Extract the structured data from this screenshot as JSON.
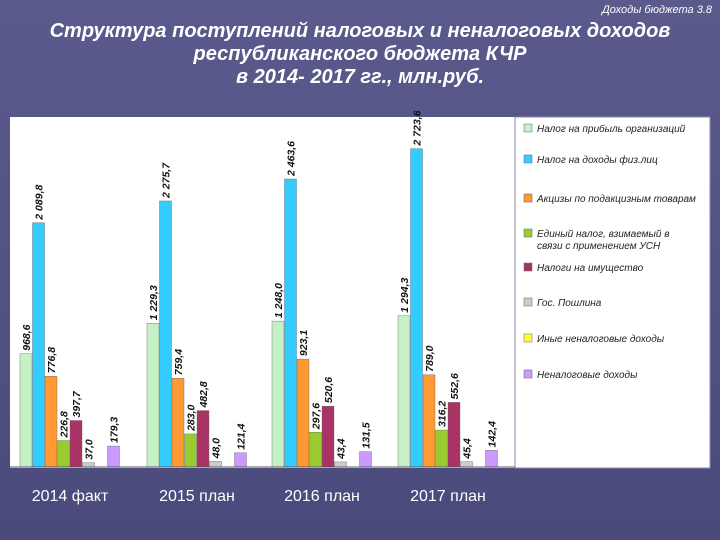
{
  "slide": {
    "header_note": "Доходы бюджета 3.8",
    "title_lines": [
      "Структура поступлений налоговых и неналоговых доходов",
      "республиканского бюджета КЧР",
      "в 2014- 2017 гг., млн.руб."
    ]
  },
  "colors": {
    "background": "#5a5a8c",
    "plot_bg": "#ffffff"
  },
  "chart_data": {
    "type": "bar",
    "title": "Структура поступлений налоговых и неналоговых доходов республиканского бюджета КЧР в 2014- 2017 гг., млн.руб.",
    "categories": [
      "2014 факт",
      "2015 план",
      "2016 план",
      "2017 план"
    ],
    "ylim": [
      0,
      2900
    ],
    "grid": false,
    "legend_position": "right",
    "series": [
      {
        "name": "Налог на прибыль организаций",
        "color": "#c6f0c6",
        "values": [
          968.6,
          1229.3,
          1248.0,
          1294.3
        ],
        "labels": [
          "968,6",
          "1 229,3",
          "1 248,0",
          "1 294,3"
        ]
      },
      {
        "name": "Налог на доходы физ.лиц",
        "color": "#33ccff",
        "values": [
          2089.8,
          2275.7,
          2463.6,
          2723.6
        ],
        "labels": [
          "2 089,8",
          "2 275,7",
          "2 463,6",
          "2 723,6"
        ]
      },
      {
        "name": "Акцизы по подакцизным товарам",
        "color": "#ff9933",
        "values": [
          776.8,
          759.4,
          923.1,
          789.0
        ],
        "labels": [
          "776,8",
          "759,4",
          "923,1",
          "789,0"
        ]
      },
      {
        "name": "Единый налог, взимаемый в связи с применением УСН",
        "color": "#99cc33",
        "values": [
          226.8,
          283.0,
          297.6,
          316.2
        ],
        "labels": [
          "226,8",
          "283,0",
          "297,6",
          "316,2"
        ]
      },
      {
        "name": "Налоги на имущество",
        "color": "#aa3366",
        "values": [
          397.7,
          482.8,
          520.6,
          552.6
        ],
        "labels": [
          "397,7",
          "482,8",
          "520,6",
          "552,6"
        ]
      },
      {
        "name": "Гос. Пошлина",
        "color": "#cccccc",
        "values": [
          37.0,
          48.0,
          43.4,
          45.4
        ],
        "labels": [
          "37,0",
          "48,0",
          "43,4",
          "45,4"
        ]
      },
      {
        "name": "Иные неналоговые доходы",
        "color": "#ffff33",
        "values": [
          0,
          0,
          0,
          0
        ],
        "labels": [
          "",
          "",
          "",
          ""
        ]
      },
      {
        "name": "Неналоговые доходы",
        "color": "#cc99ff",
        "values": [
          179.3,
          121.4,
          131.5,
          142.4
        ],
        "labels": [
          "179,3",
          "121,4",
          "131,5",
          "142,4"
        ]
      }
    ]
  }
}
